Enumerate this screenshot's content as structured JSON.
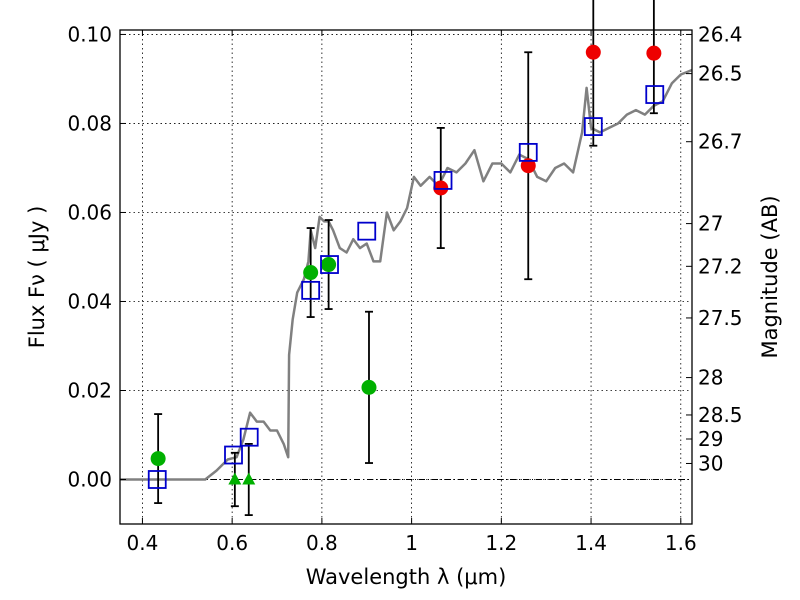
{
  "chart_data": {
    "type": "scatter",
    "xlabel": "Wavelength  λ (μm)",
    "ylabel_left": "Flux  Fν  ( μJy )",
    "ylabel_right": "Magnitude (AB)",
    "xlim": [
      0.35,
      1.625
    ],
    "ylim": [
      -0.01,
      0.101
    ],
    "x_ticks": [
      0.4,
      0.6,
      0.8,
      1.0,
      1.2,
      1.4,
      1.6
    ],
    "x_tick_labels": [
      "0.4",
      "0.6",
      "0.8",
      "1",
      "1.2",
      "1.4",
      "1.6"
    ],
    "y_ticks": [
      0.0,
      0.02,
      0.04,
      0.06,
      0.08,
      0.1
    ],
    "y_tick_labels": [
      "0.00",
      "0.02",
      "0.04",
      "0.06",
      "0.08",
      "0.10"
    ],
    "right_ticks": [
      {
        "label": "26.4",
        "flux": 0.1
      },
      {
        "label": "26.5",
        "flux": 0.0912
      },
      {
        "label": "26.7",
        "flux": 0.0759
      },
      {
        "label": "27",
        "flux": 0.0575
      },
      {
        "label": "27.2",
        "flux": 0.0479
      },
      {
        "label": "27.5",
        "flux": 0.0363
      },
      {
        "label": "28",
        "flux": 0.0229
      },
      {
        "label": "28.5",
        "flux": 0.0145
      },
      {
        "label": "29",
        "flux": 0.0091
      },
      {
        "label": "30",
        "flux": 0.0036
      }
    ],
    "grid": true,
    "colors": {
      "model": "#808080",
      "model_flux": "#0000cc",
      "optical": "#00b000",
      "nir": "#ee0000",
      "errorbar": "#000000",
      "zero_line": "#000000"
    },
    "series": [
      {
        "marker": "circle",
        "color": "#00b000",
        "points": [
          {
            "x": 0.435,
            "y": 0.0047,
            "err": 0.01
          },
          {
            "x": 0.775,
            "y": 0.0465,
            "err": 0.01
          },
          {
            "x": 0.815,
            "y": 0.0483,
            "err": 0.01
          },
          {
            "x": 0.905,
            "y": 0.0207,
            "err": 0.017
          }
        ]
      },
      {
        "marker": "triangle",
        "color": "#00b000",
        "points": [
          {
            "x": 0.606,
            "y": 0.0,
            "err": 0.006
          },
          {
            "x": 0.637,
            "y": 0.0,
            "err": 0.008
          }
        ]
      },
      {
        "marker": "circle",
        "color": "#ee0000",
        "points": [
          {
            "x": 1.065,
            "y": 0.0655,
            "err": 0.0135
          },
          {
            "x": 1.26,
            "y": 0.0705,
            "err": 0.0255
          },
          {
            "x": 1.405,
            "y": 0.096,
            "err": 0.021
          },
          {
            "x": 1.54,
            "y": 0.0958,
            "err": 0.0135
          }
        ]
      },
      {
        "marker": "square",
        "color": "#0000cc",
        "points": [
          {
            "x": 0.433,
            "y": 0.0
          },
          {
            "x": 0.603,
            "y": 0.0055
          },
          {
            "x": 0.638,
            "y": 0.0095
          },
          {
            "x": 0.775,
            "y": 0.0425
          },
          {
            "x": 0.817,
            "y": 0.0483
          },
          {
            "x": 0.9,
            "y": 0.0558
          },
          {
            "x": 1.07,
            "y": 0.0672
          },
          {
            "x": 1.26,
            "y": 0.0735
          },
          {
            "x": 1.405,
            "y": 0.0793
          },
          {
            "x": 1.542,
            "y": 0.0865
          }
        ]
      },
      {
        "marker": "line",
        "color": "#808080",
        "points": [
          {
            "x": 0.35,
            "y": 0.0
          },
          {
            "x": 0.54,
            "y": 0.0
          },
          {
            "x": 0.565,
            "y": 0.002
          },
          {
            "x": 0.59,
            "y": 0.0045
          },
          {
            "x": 0.61,
            "y": 0.005
          },
          {
            "x": 0.625,
            "y": 0.009
          },
          {
            "x": 0.64,
            "y": 0.015
          },
          {
            "x": 0.655,
            "y": 0.013
          },
          {
            "x": 0.67,
            "y": 0.013
          },
          {
            "x": 0.685,
            "y": 0.011
          },
          {
            "x": 0.7,
            "y": 0.011
          },
          {
            "x": 0.715,
            "y": 0.008
          },
          {
            "x": 0.725,
            "y": 0.005
          },
          {
            "x": 0.727,
            "y": 0.028
          },
          {
            "x": 0.735,
            "y": 0.036
          },
          {
            "x": 0.745,
            "y": 0.042
          },
          {
            "x": 0.76,
            "y": 0.045
          },
          {
            "x": 0.77,
            "y": 0.049
          },
          {
            "x": 0.775,
            "y": 0.056
          },
          {
            "x": 0.785,
            "y": 0.052
          },
          {
            "x": 0.795,
            "y": 0.059
          },
          {
            "x": 0.805,
            "y": 0.058
          },
          {
            "x": 0.815,
            "y": 0.058
          },
          {
            "x": 0.825,
            "y": 0.056
          },
          {
            "x": 0.84,
            "y": 0.052
          },
          {
            "x": 0.855,
            "y": 0.051
          },
          {
            "x": 0.87,
            "y": 0.054
          },
          {
            "x": 0.885,
            "y": 0.052
          },
          {
            "x": 0.9,
            "y": 0.053
          },
          {
            "x": 0.915,
            "y": 0.049
          },
          {
            "x": 0.93,
            "y": 0.049
          },
          {
            "x": 0.945,
            "y": 0.06
          },
          {
            "x": 0.96,
            "y": 0.056
          },
          {
            "x": 0.975,
            "y": 0.058
          },
          {
            "x": 0.99,
            "y": 0.061
          },
          {
            "x": 1.005,
            "y": 0.068
          },
          {
            "x": 1.02,
            "y": 0.066
          },
          {
            "x": 1.04,
            "y": 0.068
          },
          {
            "x": 1.06,
            "y": 0.066
          },
          {
            "x": 1.08,
            "y": 0.07
          },
          {
            "x": 1.1,
            "y": 0.069
          },
          {
            "x": 1.12,
            "y": 0.071
          },
          {
            "x": 1.14,
            "y": 0.074
          },
          {
            "x": 1.16,
            "y": 0.067
          },
          {
            "x": 1.18,
            "y": 0.071
          },
          {
            "x": 1.2,
            "y": 0.071
          },
          {
            "x": 1.22,
            "y": 0.069
          },
          {
            "x": 1.24,
            "y": 0.073
          },
          {
            "x": 1.26,
            "y": 0.072
          },
          {
            "x": 1.28,
            "y": 0.068
          },
          {
            "x": 1.3,
            "y": 0.067
          },
          {
            "x": 1.32,
            "y": 0.07
          },
          {
            "x": 1.34,
            "y": 0.071
          },
          {
            "x": 1.36,
            "y": 0.069
          },
          {
            "x": 1.38,
            "y": 0.078
          },
          {
            "x": 1.39,
            "y": 0.088
          },
          {
            "x": 1.4,
            "y": 0.079
          },
          {
            "x": 1.42,
            "y": 0.078
          },
          {
            "x": 1.44,
            "y": 0.079
          },
          {
            "x": 1.46,
            "y": 0.08
          },
          {
            "x": 1.48,
            "y": 0.082
          },
          {
            "x": 1.5,
            "y": 0.083
          },
          {
            "x": 1.52,
            "y": 0.082
          },
          {
            "x": 1.54,
            "y": 0.084
          },
          {
            "x": 1.56,
            "y": 0.085
          },
          {
            "x": 1.58,
            "y": 0.089
          },
          {
            "x": 1.6,
            "y": 0.091
          },
          {
            "x": 1.625,
            "y": 0.092
          }
        ]
      }
    ]
  }
}
